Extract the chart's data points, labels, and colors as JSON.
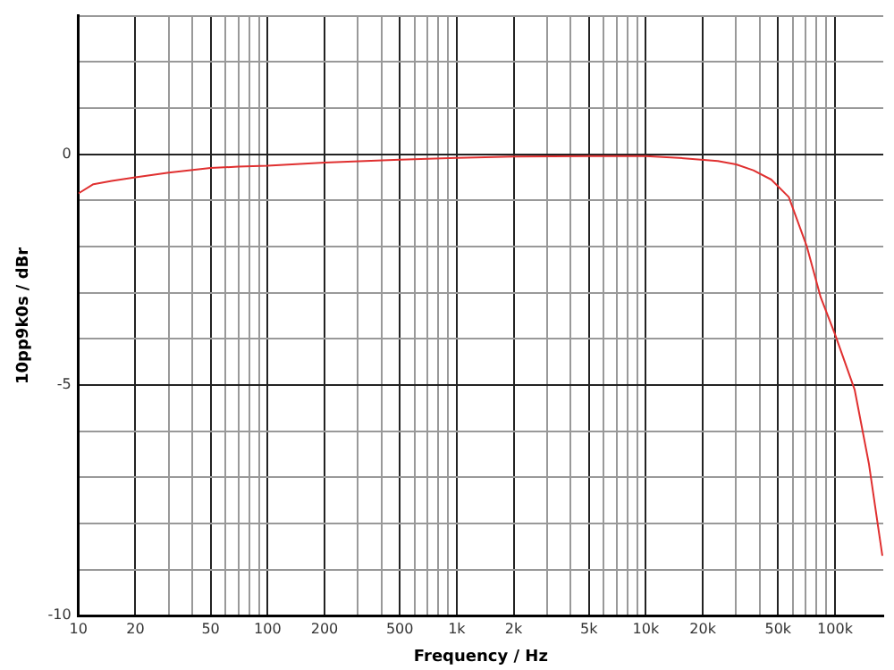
{
  "chart_data": {
    "type": "line",
    "xlabel": "Frequency / Hz",
    "ylabel": "10pp9k0s / dBr",
    "log": "x",
    "grid": true,
    "legend": false,
    "marker": "none",
    "line_style": "solid",
    "series": [
      {
        "color": "#e03030",
        "x": [
          10,
          12,
          15,
          20,
          30,
          50,
          70,
          100,
          200,
          500,
          1000,
          2000,
          5000,
          10000,
          15000,
          24000,
          30000,
          37000,
          46000,
          57000,
          71000,
          84000,
          100000,
          127000,
          151000,
          178000
        ],
        "values": [
          -0.85,
          -0.65,
          -0.58,
          -0.5,
          -0.4,
          -0.3,
          -0.27,
          -0.25,
          -0.18,
          -0.12,
          -0.08,
          -0.05,
          -0.04,
          -0.04,
          -0.08,
          -0.15,
          -0.22,
          -0.35,
          -0.55,
          -0.93,
          -2.0,
          -3.1,
          -3.9,
          -5.1,
          -6.7,
          -8.7
        ]
      }
    ],
    "xlim": [
      10,
      180000
    ],
    "xticks": [
      10,
      20,
      {
        "value": 30,
        "label": null
      },
      {
        "value": 40,
        "label": null
      },
      50,
      {
        "value": 60,
        "label": null
      },
      {
        "value": 70,
        "label": null
      },
      {
        "value": 80,
        "label": null
      },
      {
        "value": 90,
        "label": null
      },
      100,
      200,
      {
        "value": 300,
        "label": null
      },
      {
        "value": 400,
        "label": null
      },
      500,
      {
        "value": 600,
        "label": null
      },
      {
        "value": 700,
        "label": null
      },
      {
        "value": 800,
        "label": null
      },
      {
        "value": 900,
        "label": null
      },
      {
        "value": 1000,
        "label": "1k"
      },
      {
        "value": 2000,
        "label": "2k"
      },
      {
        "value": 3000,
        "label": null
      },
      {
        "value": 4000,
        "label": null
      },
      {
        "value": 5000,
        "label": "5k"
      },
      {
        "value": 6000,
        "label": null
      },
      {
        "value": 7000,
        "label": null
      },
      {
        "value": 8000,
        "label": null
      },
      {
        "value": 9000,
        "label": null
      },
      {
        "value": 10000,
        "label": "10k"
      },
      {
        "value": 20000,
        "label": "20k"
      },
      {
        "value": 30000,
        "label": null
      },
      {
        "value": 40000,
        "label": null
      },
      {
        "value": 50000,
        "label": "50k"
      },
      {
        "value": 60000,
        "label": null
      },
      {
        "value": 70000,
        "label": null
      },
      {
        "value": 80000,
        "label": null
      },
      {
        "value": 90000,
        "label": null
      },
      {
        "value": 100000,
        "label": "100k"
      }
    ],
    "ylim": [
      -10,
      3
    ],
    "yticks": [
      -10,
      {
        "value": -9,
        "label": null
      },
      {
        "value": -8,
        "label": null
      },
      {
        "value": -7,
        "label": null
      },
      {
        "value": -6,
        "label": null
      },
      -5,
      {
        "value": -4,
        "label": null
      },
      {
        "value": -3,
        "label": null
      },
      {
        "value": -2,
        "label": null
      },
      {
        "value": -1,
        "label": null
      },
      0,
      {
        "value": 1,
        "label": null
      },
      {
        "value": 2,
        "label": null
      },
      {
        "value": 3,
        "label": null
      }
    ]
  }
}
